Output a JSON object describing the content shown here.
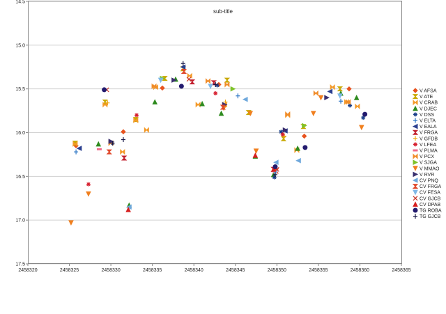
{
  "chart_data": {
    "type": "scatter",
    "title": "",
    "subtitle": "sub-title",
    "xlim": [
      2458320,
      2458365
    ],
    "ylim": [
      17.5,
      14.5
    ],
    "y_reversed": true,
    "x_ticks": [
      "2458320",
      "2458325",
      "2458330",
      "2458335",
      "2458340",
      "2458345",
      "2458350",
      "2458355",
      "2458360",
      "2458365"
    ],
    "x_tick_values": [
      2458320,
      2458325,
      2458330,
      2458335,
      2458340,
      2458345,
      2458350,
      2458355,
      2458360,
      2458365
    ],
    "y_ticks": [
      "14.5",
      "15.0",
      "15.5",
      "16.0",
      "16.5",
      "17.0",
      "17.5"
    ],
    "y_tick_values": [
      14.5,
      15.0,
      15.5,
      16.0,
      16.5,
      17.0,
      17.5
    ],
    "grid": "horizontal",
    "legend_position": "right",
    "series": [
      {
        "name": "V AFSA",
        "color": "#e8531f",
        "marker": "diamond",
        "points": [
          [
            2458325.8,
            16.15
          ],
          [
            2458331.5,
            15.99
          ],
          [
            2458336.2,
            15.49
          ],
          [
            2458343.0,
            15.45
          ],
          [
            2458353.3,
            16.04
          ],
          [
            2458358.7,
            15.5
          ]
        ]
      },
      {
        "name": "V ATE",
        "color": "#c8a800",
        "marker": "hourglass",
        "points": [
          [
            2458325.7,
            16.12
          ],
          [
            2458329.3,
            15.65
          ],
          [
            2458333.0,
            15.85
          ],
          [
            2458336.5,
            15.38
          ],
          [
            2458338.7,
            15.27
          ],
          [
            2458344.0,
            15.4
          ],
          [
            2458346.6,
            15.77
          ],
          [
            2458350.8,
            16.07
          ],
          [
            2458353.2,
            15.93
          ],
          [
            2458357.6,
            15.5
          ]
        ]
      },
      {
        "name": "V CRAB",
        "color": "#f39a2a",
        "marker": "bowtie",
        "points": [
          [
            2458325.7,
            16.13
          ],
          [
            2458329.3,
            15.68
          ],
          [
            2458331.4,
            16.22
          ],
          [
            2458333.0,
            15.86
          ],
          [
            2458334.3,
            15.97
          ],
          [
            2458335.4,
            15.48
          ],
          [
            2458339.5,
            15.35
          ],
          [
            2458340.5,
            15.68
          ],
          [
            2458343.7,
            15.68
          ],
          [
            2458351.3,
            15.8
          ],
          [
            2458352.4,
            16.2
          ],
          [
            2458356.7,
            15.48
          ],
          [
            2458358.4,
            15.65
          ],
          [
            2458359.7,
            15.7
          ]
        ]
      },
      {
        "name": "V DJEC",
        "color": "#2e8b1e",
        "marker": "triangle",
        "points": [
          [
            2458328.5,
            16.13
          ],
          [
            2458332.2,
            16.83
          ],
          [
            2458335.3,
            15.65
          ],
          [
            2458337.8,
            15.39
          ],
          [
            2458341.0,
            15.67
          ],
          [
            2458343.3,
            15.78
          ],
          [
            2458347.4,
            16.27
          ],
          [
            2458349.6,
            16.48
          ],
          [
            2458352.5,
            16.18
          ],
          [
            2458357.7,
            15.55
          ],
          [
            2458359.6,
            15.6
          ]
        ]
      },
      {
        "name": "V DSS",
        "color": "#1a3f8a",
        "marker": "star",
        "points": [
          [
            2458330.2,
            16.12
          ],
          [
            2458342.8,
            15.46
          ],
          [
            2458349.7,
            16.51
          ],
          [
            2458350.5,
            15.99
          ],
          [
            2458358.8,
            15.69
          ],
          [
            2458360.4,
            15.83
          ]
        ]
      },
      {
        "name": "V ELTA",
        "color": "#2a74c4",
        "marker": "plus",
        "points": [
          [
            2458325.8,
            16.22
          ],
          [
            2458345.3,
            15.58
          ],
          [
            2458357.7,
            15.64
          ]
        ]
      },
      {
        "name": "V EALA",
        "color": "#2b3f8f",
        "marker": "triangle-left",
        "points": [
          [
            2458326.2,
            16.18
          ],
          [
            2458338.7,
            15.25
          ],
          [
            2458351.0,
            15.98
          ],
          [
            2458356.4,
            15.53
          ]
        ]
      },
      {
        "name": "V FRGA",
        "color": "#c2202f",
        "marker": "hourglass",
        "points": [
          [
            2458331.6,
            16.29
          ],
          [
            2458339.8,
            15.42
          ],
          [
            2458342.4,
            15.43
          ],
          [
            2458349.6,
            16.42
          ]
        ]
      },
      {
        "name": "V GFDB",
        "color": "#f0a818",
        "marker": "plus",
        "points": [
          [
            2458329.6,
            15.66
          ],
          [
            2458343.8,
            15.65
          ],
          [
            2458350.9,
            16.04
          ]
        ]
      },
      {
        "name": "V LFEA",
        "color": "#d61f2f",
        "marker": "star",
        "points": [
          [
            2458327.3,
            16.59
          ],
          [
            2458333.1,
            15.8
          ],
          [
            2458342.6,
            15.55
          ],
          [
            2458350.7,
            16.02
          ]
        ]
      },
      {
        "name": "V PLMA",
        "color": "#f06a8a",
        "marker": "dash",
        "points": [
          [
            2458328.6,
            16.19
          ],
          [
            2458349.8,
            16.45
          ]
        ]
      },
      {
        "name": "V PCX",
        "color": "#f08c2a",
        "marker": "bowtie",
        "points": [
          [
            2458330.0,
            16.12
          ],
          [
            2458335.2,
            15.47
          ],
          [
            2458341.7,
            15.41
          ],
          [
            2458344.0,
            15.45
          ],
          [
            2458351.3,
            15.79
          ],
          [
            2458354.7,
            15.55
          ],
          [
            2458358.6,
            15.65
          ]
        ]
      },
      {
        "name": "V SJGA",
        "color": "#7ec22a",
        "marker": "triangle-right",
        "points": [
          [
            2458336.2,
            15.38
          ],
          [
            2458344.7,
            15.5
          ],
          [
            2458353.3,
            15.92
          ]
        ]
      },
      {
        "name": "V MMAO",
        "color": "#f07f1e",
        "marker": "triangle-down",
        "points": [
          [
            2458325.2,
            17.03
          ],
          [
            2458327.3,
            16.7
          ],
          [
            2458343.6,
            15.72
          ],
          [
            2458346.8,
            15.78
          ],
          [
            2458347.5,
            16.21
          ],
          [
            2458354.4,
            15.78
          ],
          [
            2458355.3,
            15.6
          ],
          [
            2458360.2,
            15.94
          ]
        ]
      },
      {
        "name": "V RVR",
        "color": "#3a2f6e",
        "marker": "triangle-right",
        "points": [
          [
            2458330.0,
            16.1
          ],
          [
            2458337.6,
            15.4
          ],
          [
            2458343.7,
            15.68
          ],
          [
            2458351.0,
            15.97
          ],
          [
            2458356.0,
            15.6
          ]
        ]
      },
      {
        "name": "CV PNQ",
        "color": "#6fa8dc",
        "marker": "triangle-left",
        "points": [
          [
            2458332.2,
            16.85
          ],
          [
            2458346.2,
            15.62
          ],
          [
            2458349.9,
            16.34
          ],
          [
            2458352.6,
            16.32
          ]
        ]
      },
      {
        "name": "CV FRGA",
        "color": "#e0482a",
        "marker": "hourglass",
        "points": [
          [
            2458329.8,
            16.22
          ],
          [
            2458338.8,
            15.3
          ],
          [
            2458343.5,
            15.71
          ],
          [
            2458349.9,
            16.44
          ]
        ]
      },
      {
        "name": "CV FESA",
        "color": "#7fb8e8",
        "marker": "triangle-down",
        "points": [
          [
            2458336.0,
            15.4
          ],
          [
            2458342.0,
            15.47
          ],
          [
            2458349.8,
            16.46
          ],
          [
            2458357.6,
            15.58
          ]
        ]
      },
      {
        "name": "CV GJCB",
        "color": "#c8382a",
        "marker": "cross",
        "points": [
          [
            2458329.5,
            15.51
          ],
          [
            2458339.4,
            15.39
          ],
          [
            2458350.0,
            16.42
          ]
        ]
      },
      {
        "name": "CV DPAB",
        "color": "#d62020",
        "marker": "triangle",
        "points": [
          [
            2458332.1,
            16.88
          ],
          [
            2458347.4,
            16.26
          ],
          [
            2458349.6,
            16.42
          ]
        ]
      },
      {
        "name": "TG ROBA",
        "color": "#231a6e",
        "marker": "circle",
        "points": [
          [
            2458329.2,
            15.51
          ],
          [
            2458338.5,
            15.47
          ],
          [
            2458349.8,
            16.39
          ],
          [
            2458353.4,
            16.17
          ],
          [
            2458360.6,
            15.79
          ]
        ]
      },
      {
        "name": "TG GJCB",
        "color": "#1a1a4a",
        "marker": "plus",
        "points": [
          [
            2458330.2,
            16.12
          ],
          [
            2458331.5,
            16.08
          ],
          [
            2458338.7,
            15.21
          ],
          [
            2458342.6,
            15.45
          ],
          [
            2458349.8,
            16.48
          ]
        ]
      }
    ]
  }
}
